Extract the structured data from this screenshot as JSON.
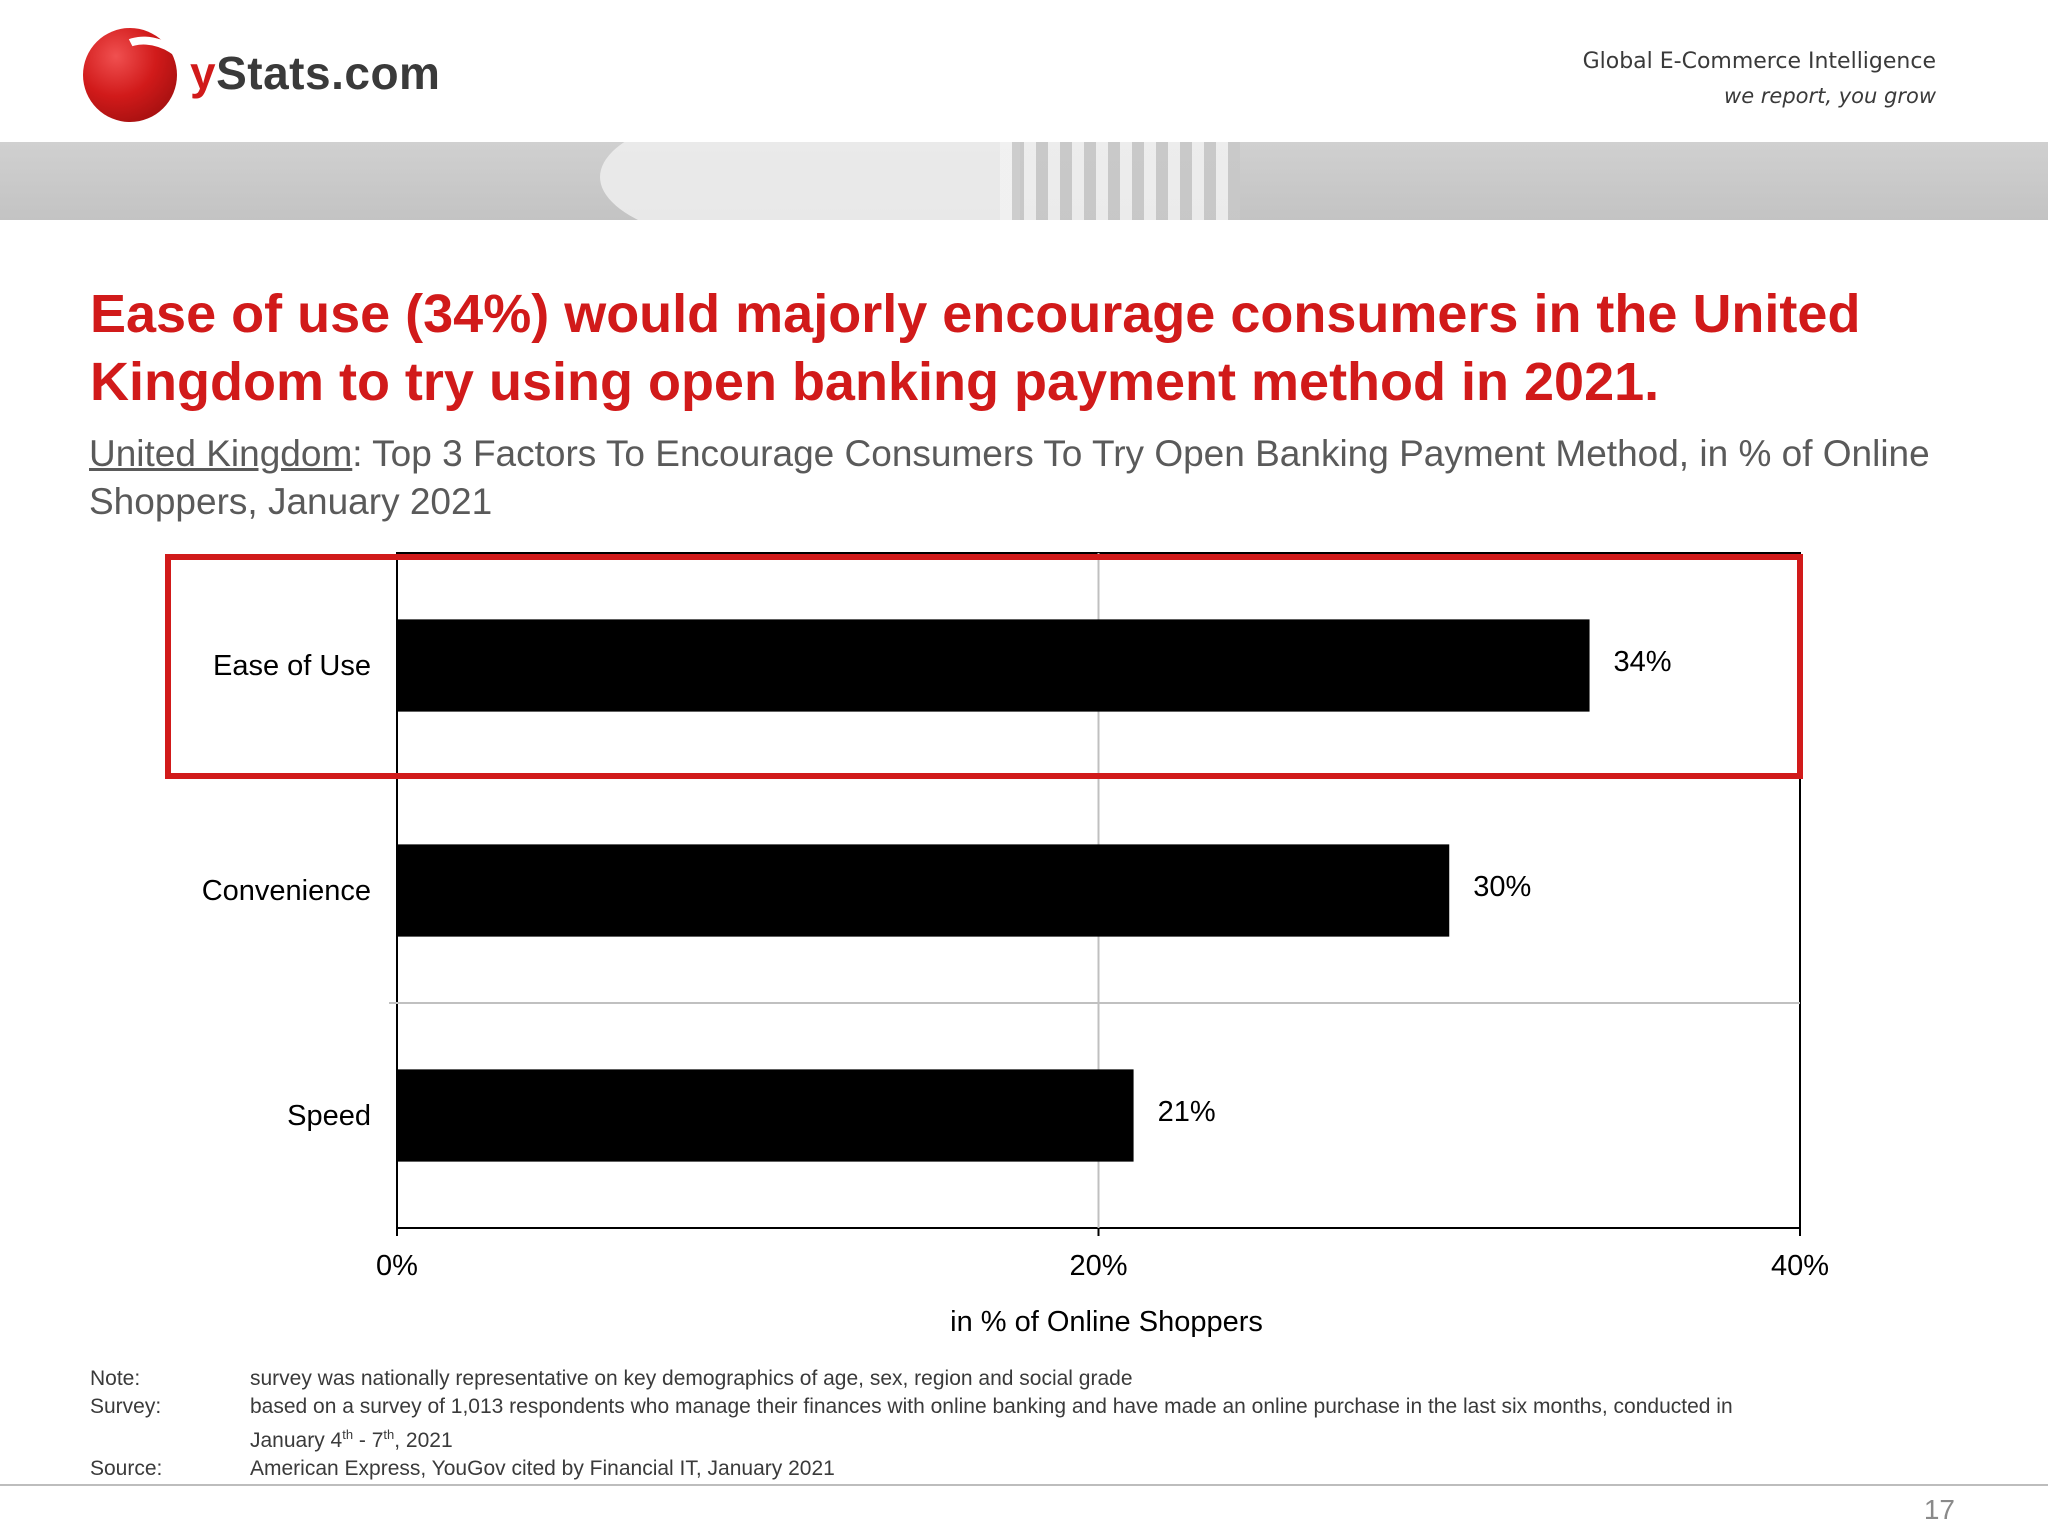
{
  "header": {
    "brand": "Stats.com",
    "brand_y": "y",
    "tagline": "Global E-Commerce Intelligence",
    "slogan": "we report, you grow"
  },
  "headline": "Ease of use (34%) would majorly encourage consumers in the United Kingdom to try using open banking payment method in 2021.",
  "subtitle": {
    "country": "United Kingdom",
    "rest": ": Top 3 Factors To Encourage Consumers To Try Open Banking Payment Method, in % of Online Shoppers, January 2021"
  },
  "chart_data": {
    "type": "bar",
    "orientation": "horizontal",
    "categories": [
      "Ease of Use",
      "Convenience",
      "Speed"
    ],
    "values": [
      34,
      30,
      21
    ],
    "value_labels": [
      "34%",
      "30%",
      "21%"
    ],
    "xlabel": "in % of Online Shoppers",
    "xlim": [
      0,
      40
    ],
    "xticks": [
      "0%",
      "20%",
      "40%"
    ],
    "grid": true,
    "bar_color": "#000000",
    "highlight_color": "#d11a1a",
    "highlighted_category": "Ease of Use"
  },
  "notes": {
    "note_label": "Note:",
    "note_text": "survey was nationally representative on key demographics of age, sex, region and social grade",
    "survey_label": "Survey:",
    "survey_line1": "based on a survey of 1,013 respondents who manage their finances with online banking and have made an online purchase in the last six months, conducted in",
    "survey_line2_a": "January 4",
    "survey_line2_sup1": "th",
    "survey_line2_b": " - 7",
    "survey_line2_sup2": "th",
    "survey_line2_c": ", 2021",
    "source_label": "Source:",
    "source_text": "American Express, YouGov cited by Financial IT, January 2021"
  },
  "page_number": "17",
  "colors": {
    "brand_red": "#d11a1a",
    "text_gray": "#5a5a5a"
  }
}
